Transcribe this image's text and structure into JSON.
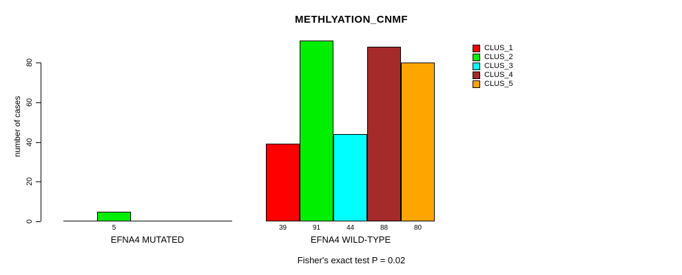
{
  "title": "METHLYATION_CNMF",
  "footnote": "Fisher's exact test P = 0.02",
  "y_axis": {
    "label": "number of cases",
    "ticks": [
      0,
      20,
      40,
      60,
      80
    ]
  },
  "chart_data": {
    "type": "bar",
    "title": "METHLYATION_CNMF",
    "xlabel": "",
    "ylabel": "number of cases",
    "ylim": [
      0,
      91
    ],
    "grid": false,
    "legend_position": "right",
    "bar_value_labels": "shown for nonzero bars only",
    "annotation": "Fisher's exact test P = 0.02",
    "categories": [
      "EFNA4 MUTATED",
      "EFNA4 WILD-TYPE"
    ],
    "series": [
      {
        "name": "CLUS_1",
        "color": "#ff0000",
        "values": [
          0,
          39
        ]
      },
      {
        "name": "CLUS_2",
        "color": "#00ee00",
        "values": [
          5,
          91
        ]
      },
      {
        "name": "CLUS_3",
        "color": "#00ffff",
        "values": [
          0,
          44
        ]
      },
      {
        "name": "CLUS_4",
        "color": "#a52a2a",
        "values": [
          0,
          88
        ]
      },
      {
        "name": "CLUS_5",
        "color": "#ffa500",
        "values": [
          0,
          80
        ]
      }
    ]
  }
}
